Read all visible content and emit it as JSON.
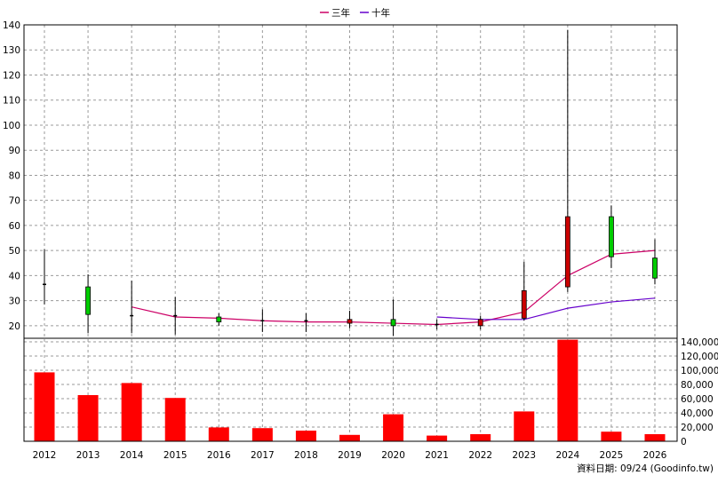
{
  "footer": {
    "source": "資料日期: 09/24  (Goodinfo.tw)"
  },
  "chart_data": [
    {
      "type": "candlestick",
      "legend_position": "top-center",
      "legend": [
        {
          "label": "三年",
          "color": "#cc0066"
        },
        {
          "label": "十年",
          "color": "#6600cc"
        }
      ],
      "grid": true,
      "ylim": [
        15,
        140
      ],
      "y_ticks": [
        20,
        30,
        40,
        50,
        60,
        70,
        80,
        90,
        100,
        110,
        120,
        130,
        140
      ],
      "categories": [
        "2012",
        "2013",
        "2014",
        "2015",
        "2016",
        "2017",
        "2018",
        "2019",
        "2020",
        "2021",
        "2022",
        "2023",
        "2024",
        "2025",
        "2026"
      ],
      "candles": [
        {
          "year": "2012",
          "open": 36.5,
          "close": 36.5,
          "high": 50.5,
          "low": 28.5,
          "color": "#000000"
        },
        {
          "year": "2013",
          "open": 35.5,
          "close": 24.5,
          "high": 40.5,
          "low": 17.0,
          "color": "#00cc00"
        },
        {
          "year": "2014",
          "open": 24.0,
          "close": 24.0,
          "high": 38.0,
          "low": 17.0,
          "color": "#000000"
        },
        {
          "year": "2015",
          "open": 24.0,
          "close": 24.0,
          "high": 31.5,
          "low": 16.5,
          "color": "#000000"
        },
        {
          "year": "2016",
          "open": 23.5,
          "close": 21.5,
          "high": 25.0,
          "low": 20.0,
          "color": "#00cc00"
        },
        {
          "year": "2017",
          "open": 22.0,
          "close": 22.0,
          "high": 26.5,
          "low": 17.5,
          "color": "#000000"
        },
        {
          "year": "2018",
          "open": 22.0,
          "close": 22.0,
          "high": 25.0,
          "low": 17.5,
          "color": "#000000"
        },
        {
          "year": "2019",
          "open": 21.0,
          "close": 22.5,
          "high": 26.0,
          "low": 19.0,
          "color": "#cc0000"
        },
        {
          "year": "2020",
          "open": 22.5,
          "close": 20.0,
          "high": 30.5,
          "low": 16.0,
          "color": "#00cc00"
        },
        {
          "year": "2021",
          "open": 20.5,
          "close": 20.5,
          "high": 22.5,
          "low": 18.5,
          "color": "#000000"
        },
        {
          "year": "2022",
          "open": 20.0,
          "close": 22.5,
          "high": 24.0,
          "low": 18.5,
          "color": "#cc0000"
        },
        {
          "year": "2023",
          "open": 23.0,
          "close": 34.0,
          "high": 45.5,
          "low": 22.0,
          "color": "#cc0000"
        },
        {
          "year": "2024",
          "open": 35.5,
          "close": 63.5,
          "high": 138.0,
          "low": 33.5,
          "color": "#cc0000"
        },
        {
          "year": "2025",
          "open": 63.5,
          "close": 47.5,
          "high": 68.0,
          "low": 43.0,
          "color": "#00cc00"
        },
        {
          "year": "2026",
          "open": 47.0,
          "close": 39.0,
          "high": 54.5,
          "low": 36.5,
          "color": "#00cc00"
        }
      ],
      "series": [
        {
          "name": "三年",
          "color": "#cc0066",
          "x": [
            "2014",
            "2015",
            "2016",
            "2017",
            "2018",
            "2019",
            "2020",
            "2021",
            "2022",
            "2023",
            "2024",
            "2025",
            "2026"
          ],
          "values": [
            27.5,
            23.5,
            23.0,
            22.0,
            21.5,
            21.5,
            21.0,
            20.5,
            21.5,
            25.5,
            40.0,
            48.5,
            50.0
          ]
        },
        {
          "name": "十年",
          "color": "#6600cc",
          "x": [
            "2021",
            "2022",
            "2023",
            "2024",
            "2025",
            "2026"
          ],
          "values": [
            23.5,
            22.5,
            22.5,
            27.0,
            29.5,
            31.0
          ]
        }
      ]
    },
    {
      "type": "bar",
      "color": "#ff0000",
      "ylim": [
        0,
        145000
      ],
      "y_ticks": [
        0,
        20000,
        40000,
        60000,
        80000,
        100000,
        120000,
        140000
      ],
      "y_tick_labels": [
        "0",
        "20,000",
        "40,000",
        "60,000",
        "80,000",
        "100,000",
        "120,000",
        "140,000"
      ],
      "categories": [
        "2012",
        "2013",
        "2014",
        "2015",
        "2016",
        "2017",
        "2018",
        "2019",
        "2020",
        "2021",
        "2022",
        "2023",
        "2024",
        "2025",
        "2026"
      ],
      "values": [
        97000,
        65000,
        82000,
        61000,
        19500,
        18500,
        15000,
        9000,
        38000,
        8000,
        10000,
        42000,
        143000,
        13500,
        10000
      ]
    }
  ]
}
